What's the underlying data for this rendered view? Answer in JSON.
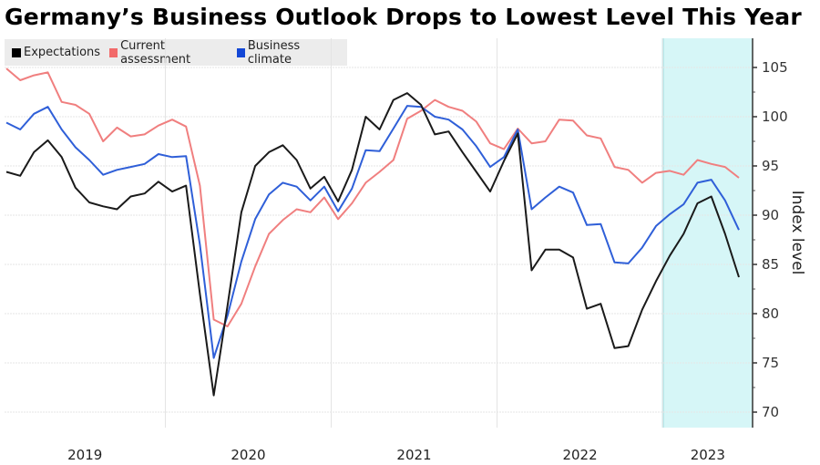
{
  "chart_data": {
    "type": "line",
    "title": "Germany’s Business Outlook Drops to Lowest Level This Year",
    "ylabel": "Index level",
    "xlabel": "",
    "ylim": [
      68.5,
      106.5
    ],
    "yticks": [
      70,
      75,
      80,
      85,
      90,
      95,
      100,
      105
    ],
    "xtick_labels": [
      "2019",
      "2020",
      "2021",
      "2022",
      "2023"
    ],
    "grid": true,
    "y_axis_side": "right",
    "legend_position": "top-left",
    "highlight": {
      "from": "2023-01",
      "to": "2023-06",
      "color": "#d6f6f7",
      "edge_color": "#5fd0d6"
    },
    "x": [
      "2019-01",
      "2019-02",
      "2019-03",
      "2019-04",
      "2019-05",
      "2019-06",
      "2019-07",
      "2019-08",
      "2019-09",
      "2019-10",
      "2019-11",
      "2019-12",
      "2020-01",
      "2020-02",
      "2020-03",
      "2020-04",
      "2020-05",
      "2020-06",
      "2020-07",
      "2020-08",
      "2020-09",
      "2020-10",
      "2020-11",
      "2020-12",
      "2021-01",
      "2021-02",
      "2021-03",
      "2021-04",
      "2021-05",
      "2021-06",
      "2021-07",
      "2021-08",
      "2021-09",
      "2021-10",
      "2021-11",
      "2021-12",
      "2022-01",
      "2022-02",
      "2022-03",
      "2022-04",
      "2022-05",
      "2022-06",
      "2022-07",
      "2022-08",
      "2022-09",
      "2022-10",
      "2022-11",
      "2022-12",
      "2023-01",
      "2023-02",
      "2023-03",
      "2023-04",
      "2023-05",
      "2023-06"
    ],
    "series": [
      {
        "name": "Expectations",
        "color": "#1a1a1a",
        "values": [
          94.4,
          94.0,
          96.4,
          97.6,
          95.9,
          92.8,
          91.3,
          90.9,
          90.6,
          91.9,
          92.2,
          93.4,
          92.4,
          93.0,
          82.0,
          71.7,
          80.8,
          90.3,
          95.0,
          96.4,
          97.1,
          95.6,
          92.7,
          93.9,
          91.4,
          94.6,
          100.0,
          98.7,
          101.7,
          102.4,
          101.2,
          98.2,
          98.5,
          96.4,
          94.4,
          92.4,
          95.5,
          98.3,
          84.4,
          86.5,
          86.5,
          85.7,
          80.5,
          81.0,
          76.5,
          76.7,
          80.4,
          83.3,
          85.9,
          88.1,
          91.2,
          91.9,
          88.1,
          83.7
        ]
      },
      {
        "name": "Current assessment",
        "color": "#f07f7f",
        "values": [
          104.9,
          103.7,
          104.2,
          104.5,
          101.5,
          101.2,
          100.3,
          97.5,
          98.9,
          98.0,
          98.2,
          99.1,
          99.7,
          99.0,
          93.0,
          79.4,
          78.7,
          81.0,
          84.8,
          88.1,
          89.5,
          90.6,
          90.3,
          91.8,
          89.6,
          91.2,
          93.3,
          94.4,
          95.6,
          99.8,
          100.6,
          101.7,
          101.0,
          100.6,
          99.5,
          97.3,
          96.7,
          98.8,
          97.3,
          97.5,
          99.7,
          99.6,
          98.1,
          97.8,
          94.9,
          94.6,
          93.3,
          94.3,
          94.5,
          94.1,
          95.6,
          95.2,
          94.9,
          93.8
        ]
      },
      {
        "name": "Business climate",
        "color": "#2f5fd8",
        "values": [
          99.4,
          98.7,
          100.3,
          101.0,
          98.7,
          96.9,
          95.6,
          94.1,
          94.6,
          94.9,
          95.2,
          96.2,
          95.9,
          96.0,
          87.0,
          75.5,
          79.8,
          85.3,
          89.6,
          92.1,
          93.3,
          92.9,
          91.5,
          92.9,
          90.4,
          92.7,
          96.6,
          96.5,
          98.8,
          101.1,
          101.0,
          100.0,
          99.7,
          98.7,
          97.0,
          94.9,
          95.9,
          98.7,
          90.6,
          91.8,
          92.9,
          92.3,
          89.0,
          89.1,
          85.2,
          85.1,
          86.7,
          88.9,
          90.1,
          91.1,
          93.3,
          93.6,
          91.5,
          88.5
        ]
      }
    ]
  }
}
